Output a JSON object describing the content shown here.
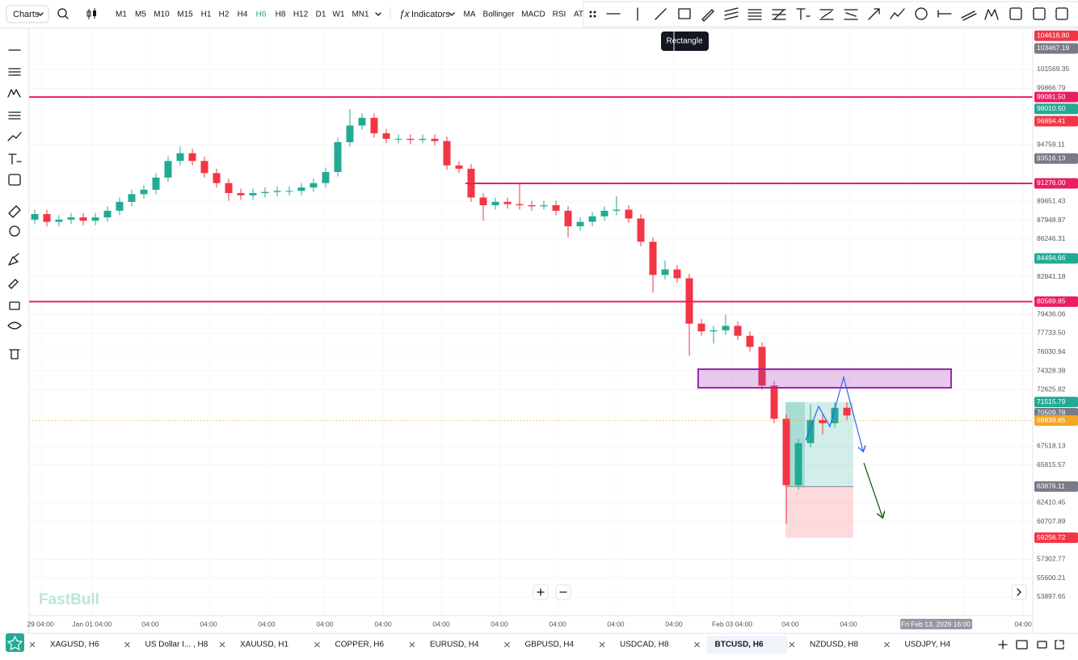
{
  "toolbar": {
    "chart_menu": "Charts",
    "timeframes": [
      "M1",
      "M5",
      "M10",
      "M15",
      "H1",
      "H2",
      "H4",
      "H6",
      "H8",
      "H12",
      "D1",
      "W1",
      "MN1"
    ],
    "active_timeframe": "H6",
    "indicators_button": "Indicators",
    "indicators": [
      "MA",
      "Bollinger",
      "MACD",
      "RSI",
      "AT"
    ]
  },
  "tooltip": "Rectangle",
  "watermark": "FastBull",
  "chart_data": {
    "type": "candlestick",
    "up_color": "#22ab94",
    "down_color": "#f23645",
    "ohlc": [
      [
        88000,
        88900,
        87600,
        88500
      ],
      [
        88500,
        88900,
        87400,
        87800
      ],
      [
        87800,
        88400,
        87400,
        88000
      ],
      [
        88000,
        88600,
        87600,
        88200
      ],
      [
        88200,
        88600,
        87500,
        87900
      ],
      [
        87900,
        88600,
        87500,
        88200
      ],
      [
        88200,
        89200,
        87800,
        88800
      ],
      [
        88800,
        90000,
        88400,
        89600
      ],
      [
        89600,
        90700,
        89200,
        90300
      ],
      [
        90300,
        91100,
        89900,
        90700
      ],
      [
        90700,
        92200,
        90300,
        91800
      ],
      [
        91800,
        93700,
        91400,
        93300
      ],
      [
        93300,
        94600,
        92900,
        94000
      ],
      [
        94000,
        94400,
        92900,
        93300
      ],
      [
        93300,
        93700,
        91800,
        92200
      ],
      [
        92200,
        92600,
        90900,
        91300
      ],
      [
        91300,
        91700,
        89700,
        90400
      ],
      [
        90400,
        90800,
        89800,
        90200
      ],
      [
        90200,
        90800,
        89800,
        90400
      ],
      [
        90400,
        90900,
        90000,
        90500
      ],
      [
        90500,
        91000,
        90100,
        90600
      ],
      [
        90600,
        91000,
        90200,
        90600
      ],
      [
        90600,
        91300,
        90200,
        90900
      ],
      [
        90900,
        91700,
        90500,
        91300
      ],
      [
        91300,
        92700,
        90900,
        92300
      ],
      [
        92300,
        95400,
        91900,
        95000
      ],
      [
        95000,
        98000,
        94600,
        96500
      ],
      [
        96500,
        97600,
        96100,
        97200
      ],
      [
        97200,
        97600,
        95400,
        95800
      ],
      [
        95800,
        96200,
        94900,
        95300
      ],
      [
        95300,
        95700,
        94900,
        95300
      ],
      [
        95300,
        95700,
        94800,
        95200
      ],
      [
        95200,
        95700,
        94900,
        95300
      ],
      [
        95300,
        95700,
        94700,
        95100
      ],
      [
        95100,
        95500,
        92500,
        92900
      ],
      [
        92900,
        93300,
        92200,
        92600
      ],
      [
        92600,
        93000,
        89600,
        90000
      ],
      [
        90000,
        90400,
        87900,
        89300
      ],
      [
        89300,
        90000,
        88900,
        89600
      ],
      [
        89600,
        90000,
        89000,
        89400
      ],
      [
        89400,
        91200,
        88900,
        89300
      ],
      [
        89300,
        89700,
        88800,
        89200
      ],
      [
        89200,
        89700,
        88900,
        89300
      ],
      [
        89300,
        89700,
        88400,
        88800
      ],
      [
        88800,
        89200,
        86400,
        87400
      ],
      [
        87400,
        88200,
        87000,
        87800
      ],
      [
        87800,
        88700,
        87400,
        88300
      ],
      [
        88300,
        89200,
        87900,
        88800
      ],
      [
        88800,
        90100,
        88400,
        88900
      ],
      [
        88900,
        89300,
        87700,
        88100
      ],
      [
        88100,
        88500,
        85600,
        86000
      ],
      [
        86000,
        86400,
        81400,
        83000
      ],
      [
        83000,
        84300,
        82600,
        83500
      ],
      [
        83500,
        83900,
        82300,
        82700
      ],
      [
        82700,
        83100,
        75700,
        78600
      ],
      [
        78600,
        79000,
        77500,
        77900
      ],
      [
        77900,
        78400,
        76800,
        78000
      ],
      [
        78000,
        79400,
        77600,
        78400
      ],
      [
        78400,
        78800,
        77100,
        77500
      ],
      [
        77500,
        77900,
        76100,
        76500
      ],
      [
        76500,
        76900,
        72600,
        73000
      ],
      [
        73000,
        73400,
        69600,
        70000
      ],
      [
        70000,
        70400,
        60500,
        64000
      ],
      [
        64000,
        68200,
        63600,
        67800
      ],
      [
        67800,
        71300,
        67400,
        69900
      ],
      [
        69900,
        70500,
        68600,
        69600
      ],
      [
        69600,
        71500,
        69200,
        71000
      ],
      [
        71000,
        71500,
        69900,
        70300
      ]
    ],
    "x_labels": [
      "29 04:00",
      "Jan 01 04:00",
      "04:00",
      "04:00",
      "04:00",
      "04:00",
      "04:00",
      "04:00",
      "04:00",
      "04:00",
      "04:00",
      "04:00",
      "Feb 03 04:00",
      "04:00",
      "04:00",
      null,
      null,
      "04:00"
    ],
    "crosshair_label": "Fri Feb 13, 2026 16:00",
    "ylim": [
      52218,
      104927
    ],
    "yticks": [
      101569.35,
      99866.79,
      94759.11,
      89651.43,
      87948.87,
      86246.31,
      82841.18,
      79436.06,
      {
        "value": 77733.5,
        "label": "77733.50"
      },
      76030.94,
      74328.38,
      72625.82,
      67518.13,
      65815.57,
      62410.45,
      60707.89,
      57302.77,
      55600.21,
      53897.65
    ],
    "grid": true,
    "price_labels": [
      {
        "value": 104618.8,
        "label": "104618.80",
        "color": "#f23645"
      },
      {
        "value": 103467.19,
        "label": "103467.19",
        "color": "#787b86"
      },
      {
        "value": 99081.5,
        "label": "99081.50",
        "color": "#e91e63",
        "line": "solid"
      },
      {
        "value": 98010.5,
        "label": "98010.50",
        "color": "#22ab94"
      },
      {
        "value": 96894.41,
        "label": "96894.41",
        "color": "#f23645"
      },
      {
        "value": 93516.13,
        "label": "93516.13",
        "color": "#787b86"
      },
      {
        "value": 91276,
        "label": "91276.00",
        "color": "#e91e63",
        "line": "solid"
      },
      {
        "value": 84494.66,
        "label": "84494.66",
        "color": "#22ab94"
      },
      {
        "value": 80589.85,
        "label": "80589.85",
        "color": "#e91e63",
        "line": "solid"
      },
      {
        "value": 71515.79,
        "label": "71515.79",
        "color": "#22ab94"
      },
      {
        "value": 70509.78,
        "label": "70509.78",
        "color": "#787b86"
      },
      {
        "value": 69839.65,
        "label": "69839.65",
        "color": "#f5a623",
        "line": "dotted"
      },
      {
        "value": 63876.11,
        "label": "63876.11",
        "color": "#787b86"
      },
      {
        "value": 59256.72,
        "label": "59256.72",
        "color": "#f23645"
      }
    ]
  },
  "tabs": {
    "items": [
      "XAGUSD, H6",
      "US Dollar I... , H8",
      "XAUUSD, H1",
      "COPPER, H6",
      "EURUSD, H4",
      "GBPUSD, H4",
      "USDCAD, H8",
      "BTCUSD, H6",
      "NZDUSD, H8",
      "USDJPY, H4"
    ],
    "active": "BTCUSD, H6"
  }
}
